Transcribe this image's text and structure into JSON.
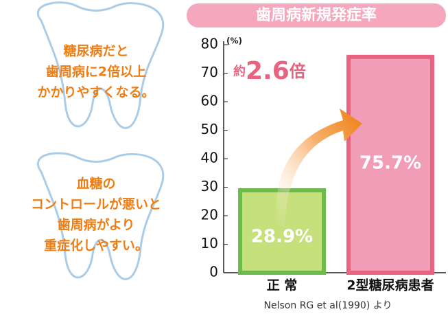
{
  "side_notes": [
    {
      "lines": [
        "糖尿病だと",
        "歯周病に2倍以上",
        "かかりやすくなる。"
      ]
    },
    {
      "lines": [
        "血糖の",
        "コントロールが悪いと",
        "歯周病がより",
        "重症化しやすい。"
      ]
    }
  ],
  "chart_data": {
    "type": "bar",
    "title": "歯周病新規発症率",
    "y_unit": "(%)",
    "categories": [
      "正 常",
      "2型糖尿病患者"
    ],
    "values": [
      28.9,
      75.7
    ],
    "value_labels": [
      "28.9%",
      "75.7%"
    ],
    "colors": [
      "#c6e07c",
      "#f29db8"
    ],
    "edge_colors": [
      "#6cb94c",
      "#e8637f"
    ],
    "ylim": [
      0,
      80
    ],
    "yticks": [
      0,
      10,
      20,
      30,
      40,
      50,
      60,
      70,
      80
    ],
    "annotation": {
      "prefix": "約",
      "value": "2.6",
      "suffix": "倍"
    },
    "source": "Nelson RG et al(1990) より"
  }
}
